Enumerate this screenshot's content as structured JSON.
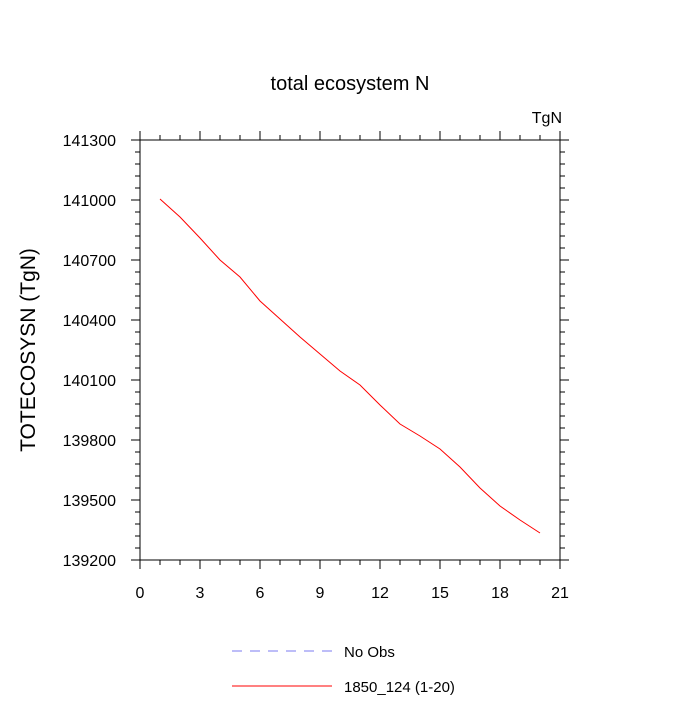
{
  "chart_data": {
    "type": "line",
    "title": "total ecosystem N",
    "units": "TgN",
    "ylabel": "TOTECOSYSN  (TgN)",
    "xlabel": "",
    "xlim": [
      0,
      21
    ],
    "ylim": [
      139200,
      141300
    ],
    "x_ticks": [
      0,
      3,
      6,
      9,
      12,
      15,
      18,
      21
    ],
    "y_ticks": [
      139200,
      139500,
      139800,
      140100,
      140400,
      140700,
      141000,
      141300
    ],
    "grid": false,
    "legend_position": "bottom",
    "series": [
      {
        "name": "No Obs",
        "color": "#7b7bf0",
        "dash": "dashed",
        "x": [],
        "values": []
      },
      {
        "name": "1850_124 (1-20)",
        "color": "#ff0000",
        "dash": "solid",
        "x": [
          1,
          2,
          3,
          4,
          5,
          6,
          7,
          8,
          9,
          10,
          11,
          12,
          13,
          14,
          15,
          16,
          17,
          18,
          19,
          20
        ],
        "values": [
          141005,
          140915,
          140810,
          140700,
          140615,
          140495,
          140405,
          140315,
          140230,
          140145,
          140075,
          139975,
          139880,
          139820,
          139755,
          139665,
          139560,
          139470,
          139400,
          139335
        ]
      }
    ]
  }
}
